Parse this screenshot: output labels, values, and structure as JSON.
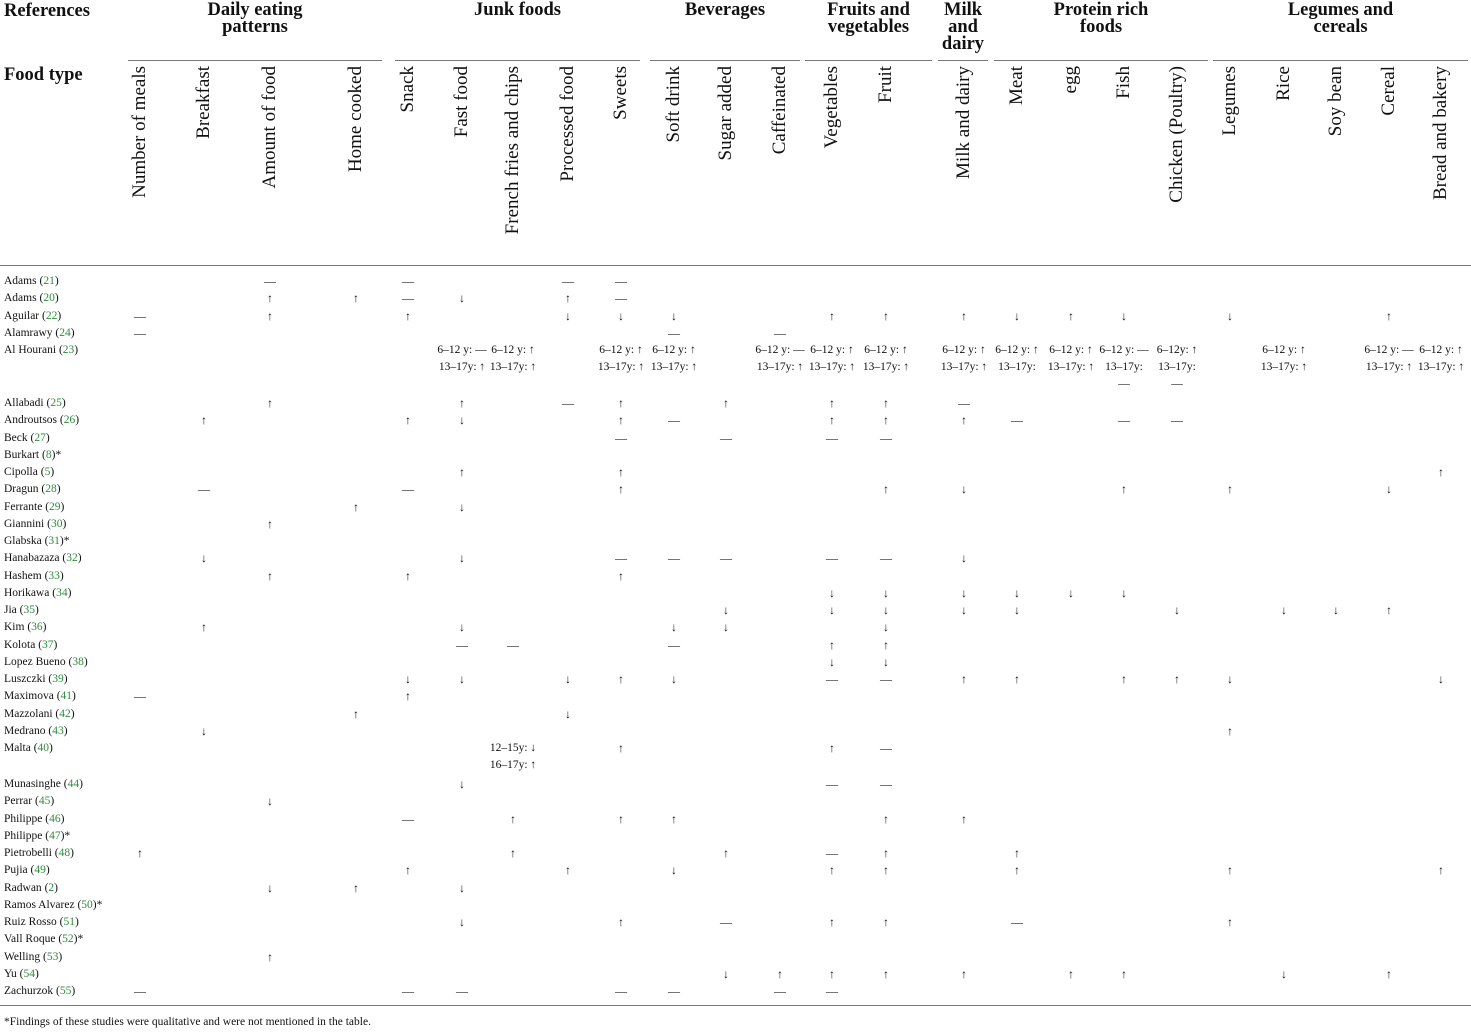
{
  "header": {
    "references_label": "References",
    "food_type_label": "Food type",
    "groups": [
      {
        "label": "Daily eating\npatterns",
        "cols": [
          0,
          3
        ]
      },
      {
        "label": "Junk foods",
        "cols": [
          4,
          8
        ]
      },
      {
        "label": "Beverages",
        "cols": [
          9,
          11
        ]
      },
      {
        "label": "Fruits and\nvegetables",
        "cols": [
          12,
          13
        ]
      },
      {
        "label": "Milk\nand\ndairy",
        "cols": [
          14,
          14
        ]
      },
      {
        "label": "Protein rich\nfoods",
        "cols": [
          15,
          18
        ]
      },
      {
        "label": "Legumes and\ncereals",
        "cols": [
          19,
          23
        ]
      }
    ],
    "columns": [
      "Number of meals",
      "Breakfast",
      "Amount of food",
      "Home cooked",
      "Snack",
      "Fast food",
      "French fries and chips",
      "Processed food",
      "Sweets",
      "Soft drink",
      "Sugar added",
      "Caffeinated",
      "Vegetables",
      "Fruit",
      "Milk and dairy",
      "Meat",
      "egg",
      "Fish",
      "Chicken (Poultry)",
      "Legumes",
      "Rice",
      "Soy bean",
      "Cereal",
      "Bread and bakery"
    ]
  },
  "rows": [
    {
      "name": "Adams",
      "ref": "21",
      "star": "",
      "cells": {
        "2": "—",
        "4": "—",
        "7": "—",
        "8": "—"
      }
    },
    {
      "name": "Adams",
      "ref": "20",
      "star": "",
      "cells": {
        "2": "↑",
        "3": "↑",
        "4": "—",
        "5": "↓",
        "7": "↑",
        "8": "—"
      }
    },
    {
      "name": "Aguilar",
      "ref": "22",
      "star": "",
      "cells": {
        "0": "—",
        "2": "↑",
        "4": "↑",
        "7": "↓",
        "8": "↓",
        "9": "↓",
        "12": "↑",
        "13": "↑",
        "14": "↑",
        "15": "↓",
        "16": "↑",
        "17": "↓",
        "19": "↓",
        "22": "↑"
      }
    },
    {
      "name": "Alamrawy",
      "ref": "24",
      "star": "",
      "cells": {
        "0": "—",
        "9": "—",
        "11": "—"
      }
    },
    {
      "name": "Al Hourani",
      "ref": "23",
      "star": "",
      "cells": {
        "5": "6–12 y: —\n13–17y: ↑",
        "6": "6–12 y: ↑\n13–17y: ↑",
        "8": "6–12 y: ↑\n13–17y: ↑",
        "9": "6–12 y: ↑\n13–17y: ↑",
        "11": "6–12 y: —\n13–17y: ↑",
        "12": "6–12 y: ↑\n13–17y: ↑",
        "13": "6–12 y: ↑\n13–17y: ↑",
        "14": "6–12 y: ↑\n13–17y: ↑",
        "15": "6–12 y: ↑\n13–17y:",
        "16": "6–12 y: ↑\n13–17y: ↑",
        "17": "6–12 y: —\n13–17y:\n—",
        "18": "6–12y: ↑\n13–17y:\n—",
        "20": "6–12 y: ↑\n13–17y: ↑",
        "22": "6–12 y: —\n13–17y: ↑",
        "23": "6–12 y: ↑\n13–17y: ↑"
      }
    },
    {
      "name": "Allabadi",
      "ref": "25",
      "star": "",
      "cells": {
        "2": "↑",
        "5": "↑",
        "7": "—",
        "8": "↑",
        "10": "↑",
        "12": "↑",
        "13": "↑",
        "14": "—"
      }
    },
    {
      "name": "Androutsos",
      "ref": "26",
      "star": "",
      "cells": {
        "1": "↑",
        "4": "↑",
        "5": "↓",
        "8": "↑",
        "9": "—",
        "12": "↑",
        "13": "↑",
        "14": "↑",
        "15": "—",
        "17": "—",
        "18": "—"
      }
    },
    {
      "name": "Beck",
      "ref": "27",
      "star": "",
      "cells": {
        "8": "—",
        "10": "—",
        "12": "—",
        "13": "—"
      }
    },
    {
      "name": "Burkart",
      "ref": "8",
      "star": "*",
      "cells": {}
    },
    {
      "name": "Cipolla",
      "ref": "5",
      "star": "",
      "cells": {
        "5": "↑",
        "8": "↑",
        "23": "↑"
      }
    },
    {
      "name": "Dragun",
      "ref": "28",
      "star": "",
      "cells": {
        "1": "—",
        "4": "—",
        "8": "↑",
        "13": "↑",
        "14": "↓",
        "17": "↑",
        "19": "↑",
        "22": "↓"
      }
    },
    {
      "name": "Ferrante",
      "ref": "29",
      "star": "",
      "cells": {
        "3": "↑",
        "5": "↓"
      }
    },
    {
      "name": "Giannini",
      "ref": "30",
      "star": "",
      "cells": {
        "2": "↑"
      }
    },
    {
      "name": "Glabska",
      "ref": "31",
      "star": "*",
      "cells": {}
    },
    {
      "name": "Hanabazaza",
      "ref": "32",
      "star": "",
      "cells": {
        "1": "↓",
        "5": "↓",
        "8": "—",
        "9": "—",
        "10": "—",
        "12": "—",
        "13": "—",
        "14": "↓"
      }
    },
    {
      "name": "Hashem",
      "ref": "33",
      "star": "",
      "cells": {
        "2": "↑",
        "4": "↑",
        "8": "↑"
      }
    },
    {
      "name": "Horikawa",
      "ref": "34",
      "star": "",
      "cells": {
        "12": "↓",
        "13": "↓",
        "14": "↓",
        "15": "↓",
        "16": "↓",
        "17": "↓"
      }
    },
    {
      "name": "Jia",
      "ref": "35",
      "star": "",
      "cells": {
        "10": "↓",
        "12": "↓",
        "13": "↓",
        "14": "↓",
        "15": "↓",
        "18": "↓",
        "20": "↓",
        "21": "↓",
        "22": "↑"
      }
    },
    {
      "name": "Kim",
      "ref": "36",
      "star": "",
      "cells": {
        "1": "↑",
        "5": "↓",
        "9": "↓",
        "10": "↓",
        "13": "↓"
      }
    },
    {
      "name": "Kolota",
      "ref": "37",
      "star": "",
      "cells": {
        "5": "—",
        "6": "—",
        "9": "—",
        "12": "↑",
        "13": "↑"
      }
    },
    {
      "name": "Lopez Bueno",
      "ref": "38",
      "star": "",
      "cells": {
        "12": "↓",
        "13": "↓"
      }
    },
    {
      "name": "Luszczki",
      "ref": "39",
      "star": "",
      "cells": {
        "4": "↓",
        "5": "↓",
        "7": "↓",
        "8": "↑",
        "9": "↓",
        "12": "—",
        "13": "—",
        "14": "↑",
        "15": "↑",
        "17": "↑",
        "18": "↑",
        "19": "↓",
        "23": "↓"
      }
    },
    {
      "name": "Maximova",
      "ref": "41",
      "star": "",
      "cells": {
        "0": "—",
        "4": "↑"
      }
    },
    {
      "name": "Mazzolani",
      "ref": "42",
      "star": "",
      "cells": {
        "3": "↑",
        "7": "↓"
      }
    },
    {
      "name": "Medrano",
      "ref": "43",
      "star": "",
      "cells": {
        "1": "↓",
        "19": "↑"
      }
    },
    {
      "name": "Malta",
      "ref": "40",
      "star": "",
      "cells": {
        "6": "12–15y: ↓\n16–17y: ↑",
        "8": "↑",
        "12": "↑",
        "13": "—"
      }
    },
    {
      "name": "Munasinghe",
      "ref": "44",
      "star": "",
      "cells": {
        "5": "↓",
        "12": "—",
        "13": "—"
      }
    },
    {
      "name": "Perrar",
      "ref": "45",
      "star": "",
      "cells": {
        "2": "↓"
      }
    },
    {
      "name": "Philippe",
      "ref": "46",
      "star": "",
      "cells": {
        "4": "—",
        "6": "↑",
        "8": "↑",
        "9": "↑",
        "13": "↑",
        "14": "↑"
      }
    },
    {
      "name": "Philippe",
      "ref": "47",
      "star": "*",
      "cells": {}
    },
    {
      "name": "Pietrobelli",
      "ref": "48",
      "star": "",
      "cells": {
        "0": "↑",
        "6": "↑",
        "10": "↑",
        "12": "—",
        "13": "↑",
        "15": "↑"
      }
    },
    {
      "name": "Pujia",
      "ref": "49",
      "star": "",
      "cells": {
        "4": "↑",
        "7": "↑",
        "9": "↓",
        "12": "↑",
        "13": "↑",
        "15": "↑",
        "19": "↑",
        "23": "↑"
      }
    },
    {
      "name": "Radwan",
      "ref": "2",
      "star": "",
      "cells": {
        "2": "↓",
        "3": "↑",
        "5": "↓"
      }
    },
    {
      "name": "Ramos Alvarez",
      "ref": "50",
      "star": "*",
      "cells": {}
    },
    {
      "name": "Ruiz Rosso",
      "ref": "51",
      "star": "",
      "cells": {
        "5": "↓",
        "8": "↑",
        "10": "—",
        "12": "↑",
        "13": "↑",
        "15": "—",
        "19": "↑"
      }
    },
    {
      "name": "Vall Roque",
      "ref": "52",
      "star": "*",
      "cells": {}
    },
    {
      "name": "Welling",
      "ref": "53",
      "star": "",
      "cells": {
        "2": "↑"
      }
    },
    {
      "name": "Yu",
      "ref": "54",
      "star": "",
      "cells": {
        "10": "↓",
        "11": "↑",
        "12": "↑",
        "13": "↑",
        "14": "↑",
        "16": "↑",
        "17": "↑",
        "20": "↓",
        "22": "↑"
      }
    },
    {
      "name": "Zachurzok",
      "ref": "55",
      "star": "",
      "cells": {
        "0": "—",
        "4": "—",
        "5": "—",
        "8": "—",
        "9": "—",
        "11": "—",
        "12": "—"
      }
    }
  ],
  "footnote": "*Findings of these studies were qualitative and were not mentioned in the table."
}
